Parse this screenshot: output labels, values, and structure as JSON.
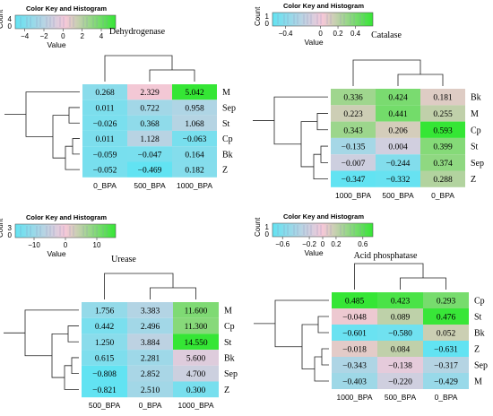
{
  "chart_data": [
    {
      "type": "heatmap",
      "title": "Dehydrogenase",
      "color_key": {
        "label": "Color Key and Histogram",
        "xlabel": "Value",
        "ylabel": "Count",
        "ymax_label": "4",
        "ymin_label": "0",
        "ticks": [
          "−4",
          "−2",
          "0",
          "2",
          "4"
        ],
        "range": [
          -5,
          5.5
        ]
      },
      "columns": [
        "0_BPA",
        "500_BPA",
        "1000_BPA"
      ],
      "rows": [
        "M",
        "Sep",
        "St",
        "Cp",
        "Bk",
        "Z"
      ],
      "cells": [
        [
          "0.268",
          "2.329",
          "5.042"
        ],
        [
          "0.011",
          "0.722",
          "0.958"
        ],
        [
          "−0.026",
          "0.368",
          "1.068"
        ],
        [
          "0.011",
          "1.128",
          "−0.063"
        ],
        [
          "−0.059",
          "−0.047",
          "0.164"
        ],
        [
          "−0.052",
          "−0.469",
          "0.182"
        ]
      ],
      "values": [
        [
          0.268,
          2.329,
          5.042
        ],
        [
          0.011,
          0.722,
          0.958
        ],
        [
          -0.026,
          0.368,
          1.068
        ],
        [
          0.011,
          1.128,
          -0.063
        ],
        [
          -0.059,
          -0.047,
          0.164
        ],
        [
          -0.052,
          -0.469,
          0.182
        ]
      ],
      "colors": {
        "low": "#62e3f2",
        "mid": "#f6c8d8",
        "high": "#35e635"
      }
    },
    {
      "type": "heatmap",
      "title": "Catalase",
      "color_key": {
        "label": "Color Key and Histogram",
        "xlabel": "Value",
        "ylabel": "Count",
        "ymax_label": "1",
        "ymin_label": "0",
        "ticks": [
          "−0.4",
          "0",
          "0.2",
          "0.4"
        ],
        "range": [
          -0.55,
          0.6
        ]
      },
      "columns": [
        "1000_BPA",
        "500_BPA",
        "0_BPA"
      ],
      "rows": [
        "Bk",
        "M",
        "Cp",
        "St",
        "Sep",
        "Z"
      ],
      "cells": [
        [
          "0.336",
          "0.424",
          "0.181"
        ],
        [
          "0.223",
          "0.441",
          "0.255"
        ],
        [
          "0.343",
          "0.206",
          "0.593"
        ],
        [
          "−0.135",
          "0.004",
          "0.399"
        ],
        [
          "−0.007",
          "−0.244",
          "0.374"
        ],
        [
          "−0.347",
          "−0.332",
          "0.288"
        ]
      ],
      "values": [
        [
          0.336,
          0.424,
          0.181
        ],
        [
          0.223,
          0.441,
          0.255
        ],
        [
          0.343,
          0.206,
          0.593
        ],
        [
          -0.135,
          0.004,
          0.399
        ],
        [
          -0.007,
          -0.244,
          0.374
        ],
        [
          -0.347,
          -0.332,
          0.288
        ]
      ],
      "colors": {
        "low": "#62e3f2",
        "mid": "#f6c8d8",
        "high": "#35e635"
      }
    },
    {
      "type": "heatmap",
      "title": "Urease",
      "color_key": {
        "label": "Color Key and Histogram",
        "xlabel": "Value",
        "ylabel": "Count",
        "ymax_label": "3",
        "ymin_label": "0",
        "ticks": [
          "−10",
          "0",
          "10"
        ],
        "range": [
          -16,
          16
        ]
      },
      "columns": [
        "500_BPA",
        "0_BPA",
        "1000_BPA"
      ],
      "rows": [
        "M",
        "Cp",
        "St",
        "Bk",
        "Sep",
        "Z"
      ],
      "cells": [
        [
          "1.756",
          "3.383",
          "11.600"
        ],
        [
          "0.442",
          "2.496",
          "11.300"
        ],
        [
          "1.250",
          "3.884",
          "14.550"
        ],
        [
          "0.615",
          "2.281",
          "5.600"
        ],
        [
          "−0.808",
          "2.852",
          "4.700"
        ],
        [
          "−0.821",
          "2.510",
          "0.300"
        ]
      ],
      "values": [
        [
          1.756,
          3.383,
          11.6
        ],
        [
          0.442,
          2.496,
          11.3
        ],
        [
          1.25,
          3.884,
          14.55
        ],
        [
          0.615,
          2.281,
          5.6
        ],
        [
          -0.808,
          2.852,
          4.7
        ],
        [
          -0.821,
          2.51,
          0.3
        ]
      ],
      "colors": {
        "low": "#62e3f2",
        "mid": "#f6c8d8",
        "high": "#35e635"
      }
    },
    {
      "type": "heatmap",
      "title": "Acid phosphatase",
      "color_key": {
        "label": "Color Key and Histogram",
        "xlabel": "Value",
        "ylabel": "Count",
        "ymax_label": "1",
        "ymin_label": "0",
        "ticks": [
          "−0.6",
          "−0.2",
          "0",
          "0.2",
          "0.6"
        ],
        "range": [
          -0.75,
          0.75
        ]
      },
      "columns": [
        "1000_BPA",
        "500_BPA",
        "0_BPA"
      ],
      "rows": [
        "Cp",
        "St",
        "Bk",
        "Z",
        "Sep",
        "M"
      ],
      "cells": [
        [
          "0.485",
          "0.423",
          "0.293"
        ],
        [
          "−0.048",
          "0.089",
          "0.476"
        ],
        [
          "−0.601",
          "−0.580",
          "0.052"
        ],
        [
          "−0.018",
          "0.084",
          "−0.631"
        ],
        [
          "−0.343",
          "−0.138",
          "−0.317"
        ],
        [
          "−0.403",
          "−0.220",
          "−0.429"
        ]
      ],
      "values": [
        [
          0.485,
          0.423,
          0.293
        ],
        [
          -0.048,
          0.089,
          0.476
        ],
        [
          -0.601,
          -0.58,
          0.052
        ],
        [
          -0.018,
          0.084,
          -0.631
        ],
        [
          -0.343,
          -0.138,
          -0.317
        ],
        [
          -0.403,
          -0.22,
          -0.429
        ]
      ],
      "colors": {
        "low": "#62e3f2",
        "mid": "#f6c8d8",
        "high": "#35e635"
      }
    }
  ]
}
